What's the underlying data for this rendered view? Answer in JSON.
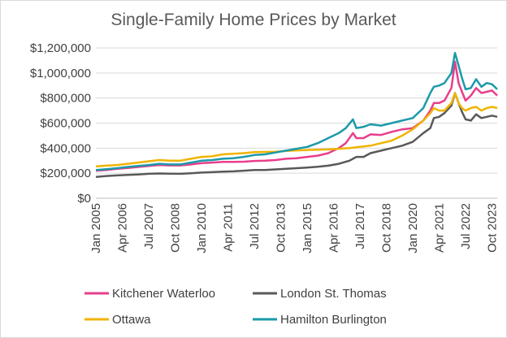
{
  "chart_data": {
    "type": "line",
    "title": "Single-Family Home Prices by Market",
    "xlabel": "",
    "ylabel": "",
    "ylim": [
      0,
      1200000
    ],
    "yticks": [
      0,
      200000,
      400000,
      600000,
      800000,
      1000000,
      1200000
    ],
    "ytick_labels": [
      "$0",
      "$200,000",
      "$400,000",
      "$600,000",
      "$800,000",
      "$1,000,000",
      "$1,200,000"
    ],
    "xlim": [
      2005.0,
      2024.0
    ],
    "x_tick_labels": [
      "Jan 2005",
      "Apr 2006",
      "Jul 2007",
      "Oct 2008",
      "Jan 2010",
      "Apr 2011",
      "Jul 2012",
      "Oct 2013",
      "Jan 2015",
      "Apr 2016",
      "Jul 2017",
      "Oct 2018",
      "Jan 2020",
      "Apr 2021",
      "Jul 2022",
      "Oct 2023"
    ],
    "x_tick_values": [
      2005.0,
      2006.25,
      2007.5,
      2008.75,
      2010.0,
      2011.25,
      2012.5,
      2013.75,
      2015.0,
      2016.25,
      2017.5,
      2018.75,
      2020.0,
      2021.25,
      2022.5,
      2023.75
    ],
    "grid": "horizontal",
    "legend": "bottom",
    "series": [
      {
        "name": "Kitchener Waterloo",
        "color": "#e83e8c",
        "x": [
          2005.0,
          2005.5,
          2006.0,
          2006.5,
          2007.0,
          2007.5,
          2008.0,
          2008.5,
          2009.0,
          2009.5,
          2010.0,
          2010.5,
          2011.0,
          2011.5,
          2012.0,
          2012.5,
          2013.0,
          2013.5,
          2014.0,
          2014.5,
          2015.0,
          2015.5,
          2016.0,
          2016.5,
          2016.83,
          2017.17,
          2017.33,
          2017.67,
          2018.0,
          2018.5,
          2019.0,
          2019.5,
          2020.0,
          2020.5,
          2020.83,
          2021.0,
          2021.25,
          2021.5,
          2021.83,
          2022.0,
          2022.17,
          2022.33,
          2022.5,
          2022.75,
          2023.0,
          2023.25,
          2023.5,
          2023.75,
          2024.0
        ],
        "values": [
          220000,
          225000,
          235000,
          242000,
          250000,
          258000,
          265000,
          262000,
          262000,
          270000,
          280000,
          285000,
          290000,
          290000,
          292000,
          298000,
          300000,
          305000,
          315000,
          320000,
          330000,
          340000,
          360000,
          400000,
          440000,
          520000,
          480000,
          480000,
          510000,
          505000,
          530000,
          550000,
          560000,
          620000,
          700000,
          760000,
          760000,
          780000,
          880000,
          1090000,
          920000,
          850000,
          780000,
          820000,
          880000,
          840000,
          850000,
          860000,
          820000
        ]
      },
      {
        "name": "London St. Thomas",
        "color": "#595959",
        "x": [
          2005.0,
          2005.5,
          2006.0,
          2006.5,
          2007.0,
          2007.5,
          2008.0,
          2008.5,
          2009.0,
          2009.5,
          2010.0,
          2010.5,
          2011.0,
          2011.5,
          2012.0,
          2012.5,
          2013.0,
          2013.5,
          2014.0,
          2014.5,
          2015.0,
          2015.5,
          2016.0,
          2016.5,
          2017.0,
          2017.33,
          2017.67,
          2018.0,
          2018.5,
          2019.0,
          2019.5,
          2020.0,
          2020.5,
          2020.83,
          2021.0,
          2021.25,
          2021.5,
          2021.83,
          2022.0,
          2022.17,
          2022.33,
          2022.5,
          2022.75,
          2023.0,
          2023.25,
          2023.5,
          2023.75,
          2024.0
        ],
        "values": [
          170000,
          178000,
          182000,
          186000,
          190000,
          195000,
          198000,
          196000,
          195000,
          200000,
          205000,
          208000,
          212000,
          215000,
          220000,
          225000,
          225000,
          230000,
          235000,
          240000,
          245000,
          252000,
          260000,
          275000,
          300000,
          330000,
          330000,
          360000,
          380000,
          400000,
          420000,
          450000,
          520000,
          560000,
          640000,
          650000,
          680000,
          740000,
          840000,
          760000,
          690000,
          630000,
          620000,
          670000,
          640000,
          650000,
          660000,
          650000
        ]
      },
      {
        "name": "Ottawa",
        "color": "#f0b400",
        "x": [
          2005.0,
          2005.5,
          2006.0,
          2006.5,
          2007.0,
          2007.5,
          2008.0,
          2008.5,
          2009.0,
          2009.5,
          2010.0,
          2010.5,
          2011.0,
          2011.5,
          2012.0,
          2012.5,
          2013.0,
          2013.5,
          2014.0,
          2014.5,
          2015.0,
          2015.5,
          2016.0,
          2016.5,
          2017.0,
          2017.5,
          2018.0,
          2018.5,
          2019.0,
          2019.5,
          2020.0,
          2020.5,
          2020.83,
          2021.0,
          2021.25,
          2021.5,
          2021.83,
          2022.0,
          2022.17,
          2022.33,
          2022.5,
          2022.75,
          2023.0,
          2023.25,
          2023.5,
          2023.75,
          2024.0
        ],
        "values": [
          255000,
          260000,
          265000,
          275000,
          285000,
          295000,
          305000,
          300000,
          300000,
          315000,
          330000,
          335000,
          350000,
          355000,
          360000,
          368000,
          370000,
          372000,
          378000,
          382000,
          385000,
          388000,
          390000,
          395000,
          400000,
          410000,
          420000,
          440000,
          460000,
          500000,
          550000,
          620000,
          680000,
          720000,
          700000,
          700000,
          760000,
          840000,
          760000,
          720000,
          700000,
          720000,
          730000,
          700000,
          720000,
          730000,
          720000
        ]
      },
      {
        "name": "Hamilton Burlington",
        "color": "#1b9aaa",
        "x": [
          2005.0,
          2005.5,
          2006.0,
          2006.5,
          2007.0,
          2007.5,
          2008.0,
          2008.5,
          2009.0,
          2009.5,
          2010.0,
          2010.5,
          2011.0,
          2011.5,
          2012.0,
          2012.5,
          2013.0,
          2013.5,
          2014.0,
          2014.5,
          2015.0,
          2015.5,
          2016.0,
          2016.5,
          2016.83,
          2017.17,
          2017.33,
          2017.67,
          2018.0,
          2018.5,
          2019.0,
          2019.5,
          2020.0,
          2020.5,
          2020.83,
          2021.0,
          2021.25,
          2021.5,
          2021.83,
          2022.0,
          2022.17,
          2022.33,
          2022.5,
          2022.75,
          2023.0,
          2023.25,
          2023.5,
          2023.75,
          2024.0
        ],
        "values": [
          225000,
          232000,
          240000,
          250000,
          258000,
          265000,
          275000,
          270000,
          270000,
          285000,
          300000,
          305000,
          315000,
          320000,
          330000,
          345000,
          350000,
          365000,
          380000,
          395000,
          410000,
          440000,
          480000,
          520000,
          560000,
          630000,
          560000,
          570000,
          590000,
          580000,
          600000,
          620000,
          640000,
          720000,
          840000,
          890000,
          900000,
          920000,
          1000000,
          1160000,
          1060000,
          960000,
          870000,
          880000,
          950000,
          890000,
          920000,
          910000,
          870000
        ]
      }
    ]
  }
}
